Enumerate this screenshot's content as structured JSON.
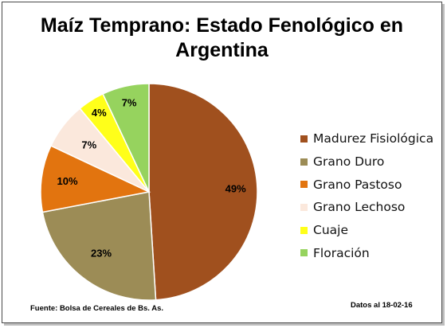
{
  "chart_data": {
    "type": "pie",
    "title": "Maíz Temprano: Estado Fenológico en Argentina",
    "title_lines": [
      "Maíz Temprano: Estado Fenológico en",
      "Argentina"
    ],
    "categories": [
      "Madurez Fisiológica",
      "Grano Duro",
      "Grano Pastoso",
      "Grano Lechoso",
      "Cuaje",
      "Floración"
    ],
    "values": [
      49,
      23,
      10,
      7,
      4,
      7
    ],
    "labels": [
      "49%",
      "23%",
      "10%",
      "7%",
      "4%",
      "7%"
    ],
    "colors": [
      "#A0501E",
      "#9C8C56",
      "#E2740F",
      "#FBE8DC",
      "#FFFF1A",
      "#96D35E"
    ],
    "legend_position": "right",
    "start_angle": "12 o'clock, clockwise"
  },
  "footer": {
    "source": "Fuente: Bolsa de Cereales de Bs. As.",
    "date": "Datos al 18-02-16"
  }
}
